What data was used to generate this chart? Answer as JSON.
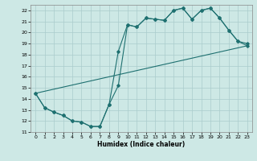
{
  "xlabel": "Humidex (Indice chaleur)",
  "bg_color": "#cde8e5",
  "grid_color": "#aacccc",
  "line_color": "#1e7070",
  "xlim": [
    -0.5,
    23.5
  ],
  "ylim": [
    11,
    22.5
  ],
  "xticks": [
    0,
    1,
    2,
    3,
    4,
    5,
    6,
    7,
    8,
    9,
    10,
    11,
    12,
    13,
    14,
    15,
    16,
    17,
    18,
    19,
    20,
    21,
    22,
    23
  ],
  "yticks": [
    11,
    12,
    13,
    14,
    15,
    16,
    17,
    18,
    19,
    20,
    21,
    22
  ],
  "line1_x": [
    0,
    1,
    2,
    3,
    4,
    5,
    6,
    7,
    8,
    9,
    10,
    11,
    12,
    13,
    14,
    15,
    16,
    17,
    18,
    19,
    20,
    21,
    22,
    23
  ],
  "line1_y": [
    14.5,
    13.2,
    12.8,
    12.5,
    12.0,
    11.9,
    11.5,
    11.5,
    13.5,
    15.2,
    20.7,
    20.5,
    21.3,
    21.2,
    21.1,
    22.0,
    22.2,
    21.2,
    22.0,
    22.2,
    21.3,
    20.2,
    19.2,
    19.0
  ],
  "line2_x": [
    0,
    1,
    2,
    3,
    4,
    5,
    6,
    7,
    8,
    9,
    10,
    11,
    12,
    13,
    14,
    15,
    16,
    17,
    18,
    19,
    20,
    21,
    22,
    23
  ],
  "line2_y": [
    14.5,
    13.2,
    12.8,
    12.5,
    12.0,
    11.9,
    11.5,
    11.5,
    13.5,
    18.3,
    20.7,
    20.5,
    21.3,
    21.2,
    21.1,
    22.0,
    22.2,
    21.2,
    22.0,
    22.2,
    21.3,
    20.2,
    19.2,
    18.8
  ],
  "line3_x": [
    0,
    23
  ],
  "line3_y": [
    14.5,
    18.8
  ]
}
